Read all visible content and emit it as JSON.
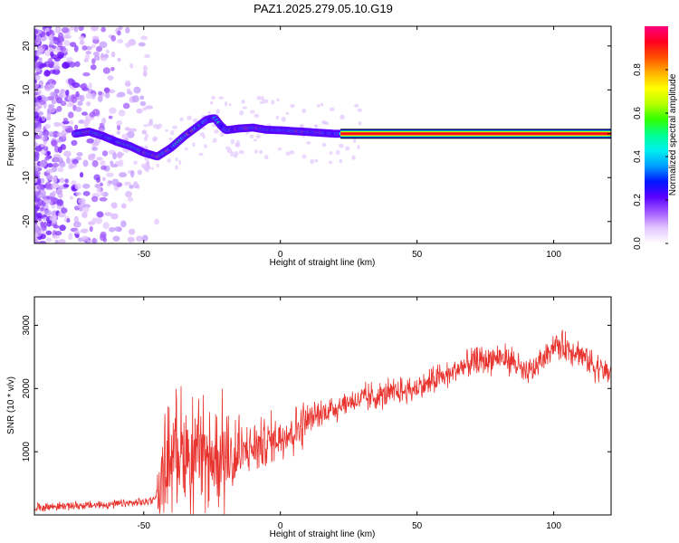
{
  "title": "PAZ1.2025.279.05.10.G19",
  "colors": {
    "snr_line": "#e8332e",
    "spectrogram_noise": "#8a2be2",
    "frame": "#000000"
  },
  "colormap": [
    "#ffffff",
    "#e3c7ff",
    "#a35bff",
    "#5a00ff",
    "#0018ff",
    "#00a0ff",
    "#00f0f0",
    "#00ff90",
    "#30ff00",
    "#b8ff00",
    "#ffff00",
    "#ffb000",
    "#ff5000",
    "#ff0020",
    "#ff0080"
  ],
  "chart_data": [
    {
      "type": "heatmap",
      "xlabel": "Height of straight line (km)",
      "ylabel": "Frequency (Hz)",
      "xlim": [
        -90,
        121
      ],
      "ylim": [
        -25,
        24.5
      ],
      "xticks": [
        -50,
        0,
        50,
        100
      ],
      "yticks": [
        -20,
        -10,
        0,
        10,
        20
      ],
      "colorbar": {
        "label": "Normalized spectral amplitude",
        "range": [
          0,
          1
        ],
        "ticks": [
          "0.0",
          "0.2",
          "0.4",
          "0.6",
          "0.8"
        ]
      },
      "signal_track": {
        "x": [
          -75,
          -70,
          -65,
          -60,
          -55,
          -50,
          -45,
          -40,
          -35,
          -30,
          -27,
          -24,
          -22,
          -20,
          -15,
          -10,
          -5,
          0,
          5,
          10,
          15,
          20,
          23,
          121
        ],
        "freq": [
          0,
          0.5,
          -0.5,
          -1.8,
          -2.8,
          -4.3,
          -5.2,
          -3.2,
          -0.5,
          1.8,
          3.2,
          3.6,
          2,
          0.8,
          1.2,
          1.4,
          0.9,
          0.8,
          0.6,
          0.4,
          0.2,
          0,
          0,
          0
        ]
      }
    },
    {
      "type": "line",
      "xlabel": "Height of straight line (km)",
      "ylabel": "SNR (10 * v/v)",
      "xlim": [
        -90,
        121
      ],
      "ylim": [
        0,
        3450
      ],
      "xticks": [
        -50,
        0,
        50,
        100
      ],
      "yticks": [
        1000,
        2000,
        3000
      ],
      "series": [
        {
          "x": [
            -90,
            -80,
            -70,
            -60,
            -50,
            -46,
            -43,
            -40,
            -38,
            -35,
            -32,
            -29,
            -26,
            -23,
            -20,
            -17,
            -14,
            -11,
            -8,
            -5,
            -2,
            0,
            5,
            10,
            15,
            20,
            25,
            30,
            35,
            40,
            45,
            50,
            55,
            60,
            65,
            70,
            75,
            80,
            85,
            90,
            95,
            100,
            105,
            110,
            115,
            121
          ],
          "y": [
            120,
            140,
            150,
            170,
            200,
            260,
            600,
            1000,
            1200,
            1000,
            950,
            900,
            850,
            950,
            900,
            850,
            1000,
            1050,
            1100,
            1150,
            1200,
            1250,
            1350,
            1500,
            1600,
            1700,
            1780,
            1830,
            1870,
            1920,
            1950,
            2000,
            2100,
            2200,
            2300,
            2400,
            2450,
            2500,
            2450,
            2200,
            2400,
            2700,
            2650,
            2550,
            2350,
            2250
          ]
        }
      ]
    }
  ]
}
